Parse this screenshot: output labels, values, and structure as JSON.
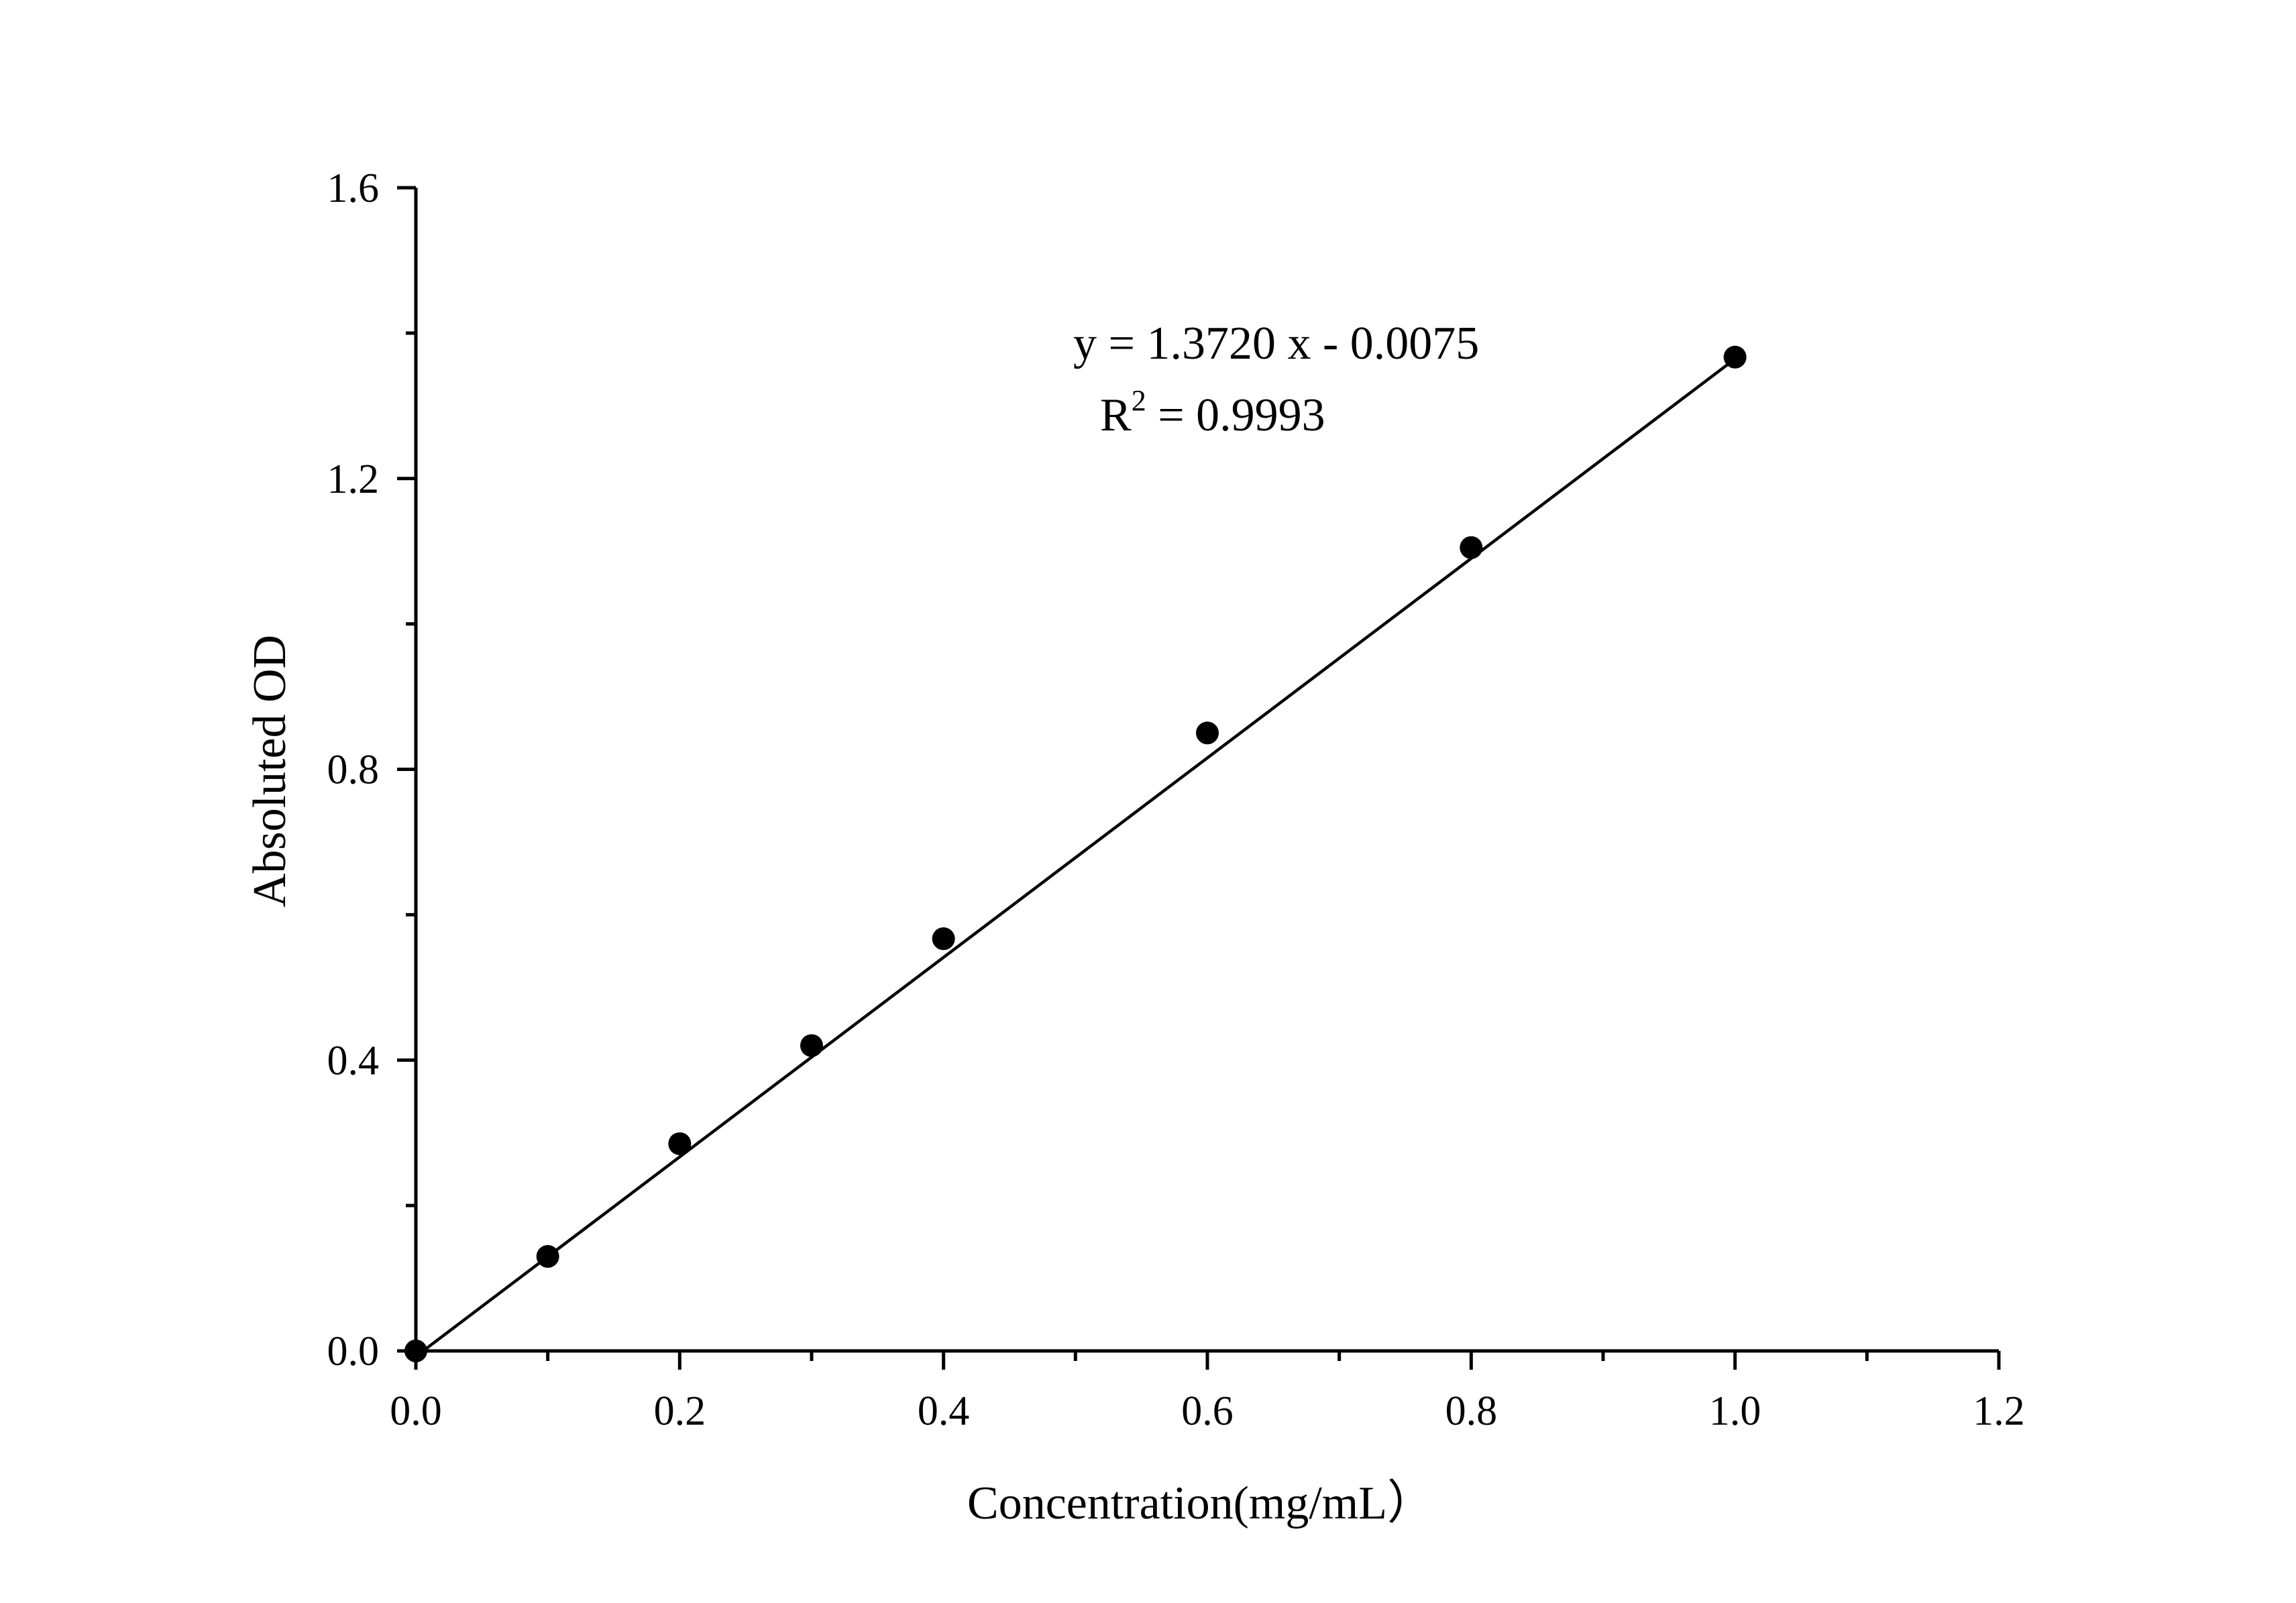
{
  "chart_data": {
    "type": "scatter",
    "title": "",
    "xlabel": "Concentration(mg/mL）",
    "ylabel": "Absoluted OD",
    "xlim": [
      0,
      1.2
    ],
    "ylim": [
      0,
      1.6
    ],
    "xticks": [
      "0.0",
      "0.2",
      "0.4",
      "0.6",
      "0.8",
      "1.0",
      "1.2"
    ],
    "yticks": [
      "0.0",
      "0.4",
      "0.8",
      "1.2",
      "1.6"
    ],
    "x_minor_step": 0.1,
    "y_minor_step": 0.2,
    "grid": false,
    "series": [
      {
        "marker": "filled-circle",
        "color": "#000000",
        "x": [
          0.0,
          0.1,
          0.2,
          0.3,
          0.4,
          0.6,
          0.8,
          1.0
        ],
        "y": [
          0.0,
          0.13,
          0.285,
          0.42,
          0.567,
          0.85,
          1.105,
          1.367
        ]
      }
    ],
    "fit_line": {
      "slope": 1.372,
      "intercept": -0.0075,
      "x_range": [
        0.0,
        1.0
      ],
      "color": "#000000"
    },
    "annotations": {
      "equation": "y = 1.3720 x - 0.0075",
      "r2_prefix": "R",
      "r2_sup": "2",
      "r2_rest": " = 0.9993"
    }
  }
}
